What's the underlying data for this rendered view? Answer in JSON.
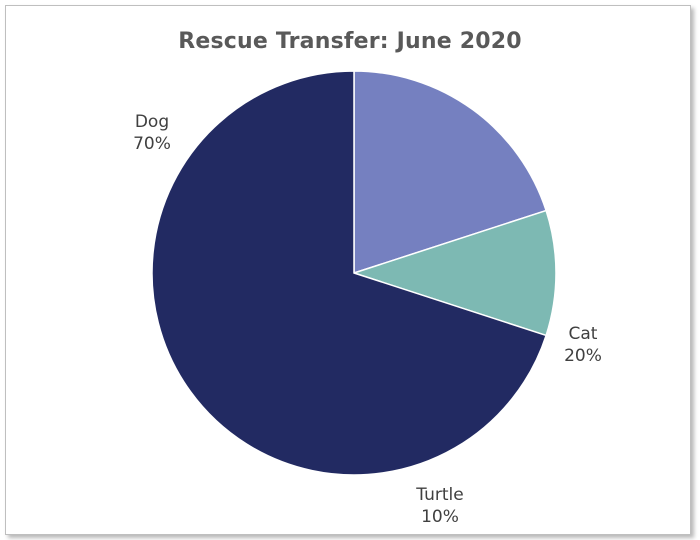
{
  "chart_data": {
    "type": "pie",
    "title": "Rescue Transfer: June 2020",
    "categories": [
      "Dog",
      "Cat",
      "Turtle"
    ],
    "values": [
      70,
      20,
      10
    ],
    "value_labels": [
      "70%",
      "20%",
      "10%"
    ],
    "colors": [
      "#222a62",
      "#7580c0",
      "#7db9b3"
    ],
    "start": "12 o'clock",
    "direction": "clockwise",
    "slice_order": [
      "Cat",
      "Turtle",
      "Dog"
    ],
    "legend": "none",
    "data_labels": "outside, category and percent"
  }
}
